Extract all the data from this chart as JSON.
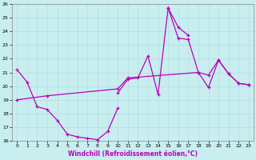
{
  "xlabel": "Windchill (Refroidissement éolien,°C)",
  "ylabel": "",
  "bg_color": "#c8eef0",
  "grid_color": "#b0dde0",
  "line_color": "#bb00bb",
  "xlim": [
    -0.5,
    23.5
  ],
  "ylim": [
    16,
    26
  ],
  "yticks": [
    16,
    17,
    18,
    19,
    20,
    21,
    22,
    23,
    24,
    25,
    26
  ],
  "xticks": [
    0,
    1,
    2,
    3,
    4,
    5,
    6,
    7,
    8,
    9,
    10,
    11,
    12,
    13,
    14,
    15,
    16,
    17,
    18,
    19,
    20,
    21,
    22,
    23
  ],
  "series": [
    {
      "x": [
        0,
        1,
        2,
        3,
        4,
        5,
        6,
        7,
        8,
        9,
        10
      ],
      "y": [
        21.2,
        20.3,
        18.5,
        18.3,
        17.5,
        16.5,
        16.3,
        16.2,
        16.1,
        16.7,
        18.4
      ]
    },
    {
      "x": [
        10,
        11,
        12,
        13,
        14,
        15,
        16,
        17
      ],
      "y": [
        19.5,
        20.5,
        20.6,
        22.2,
        19.4,
        25.7,
        24.3,
        23.7
      ]
    },
    {
      "x": [
        0,
        3,
        10,
        11,
        18,
        19,
        20,
        21,
        22,
        23
      ],
      "y": [
        19.0,
        19.3,
        19.8,
        20.6,
        21.0,
        20.8,
        21.9,
        20.9,
        20.2,
        20.1
      ]
    },
    {
      "x": [
        15,
        16,
        17,
        18,
        19,
        20,
        21,
        22,
        23
      ],
      "y": [
        25.7,
        23.5,
        23.4,
        21.0,
        19.9,
        21.9,
        20.9,
        20.2,
        20.1
      ]
    }
  ]
}
